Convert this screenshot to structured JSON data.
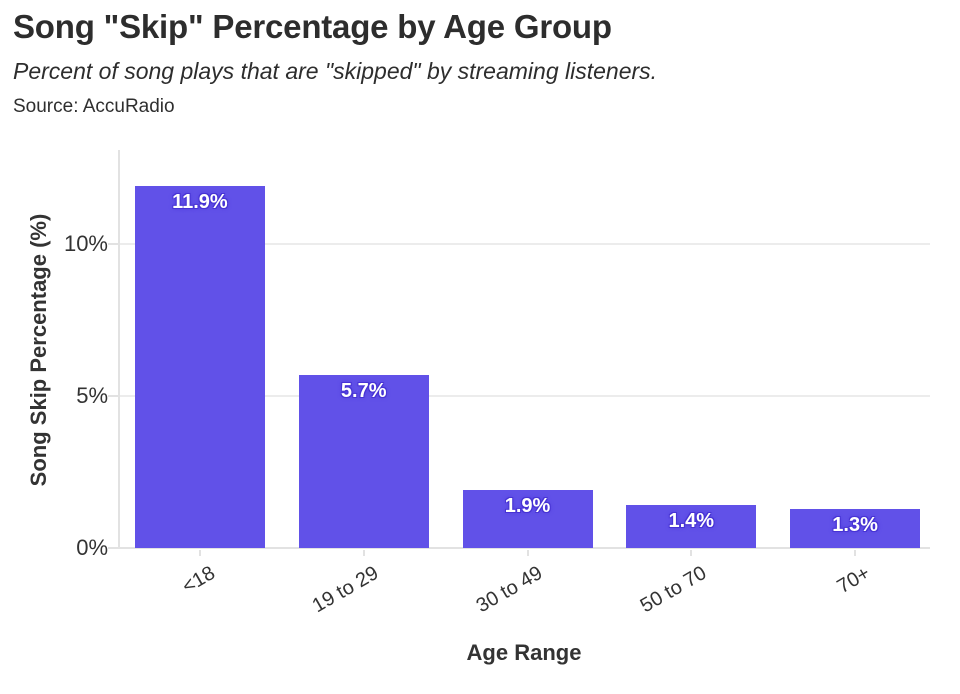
{
  "chart_data": {
    "type": "bar",
    "title": "Song \"Skip\" Percentage by Age Group",
    "subtitle": "Percent of song plays that are \"skipped\" by streaming listeners.",
    "source": "Source: AccuRadio",
    "xlabel": "Age Range",
    "ylabel": "Song Skip Percentage (%)",
    "categories": [
      "<18",
      "19 to 29",
      "30 to 49",
      "50 to 70",
      "70+"
    ],
    "values": [
      11.9,
      5.7,
      1.9,
      1.4,
      1.3
    ],
    "bar_labels": [
      "11.9%",
      "5.7%",
      "1.9%",
      "1.4%",
      "1.3%"
    ],
    "ylim": [
      0,
      13.1
    ],
    "yticks": {
      "values": [
        0,
        5,
        10
      ],
      "labels": [
        "0%",
        "5%",
        "10%"
      ]
    },
    "grid": true,
    "legend": false,
    "colors": {
      "bar": "#6151e8",
      "bar_label_text": "#ffffff",
      "bar_label_halo": "#4733d4",
      "gridline": "#ececec",
      "axis_line": "#e2e2e2",
      "tick_text": "#333333",
      "title_text": "#2d2d2d"
    }
  }
}
